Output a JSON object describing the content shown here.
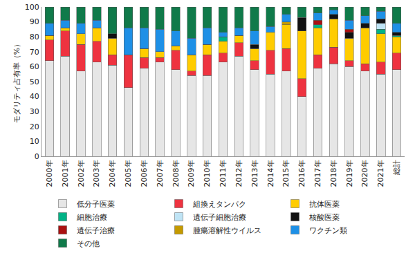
{
  "chart_data": {
    "type": "bar",
    "stacked": true,
    "y_label": "モダリティ占有率（%）",
    "categories": [
      "2000年",
      "2001年",
      "2002年",
      "2003年",
      "2004年",
      "2005年",
      "2006年",
      "2007年",
      "2008年",
      "2009年",
      "2010年",
      "2011年",
      "2012年",
      "2013年",
      "2014年",
      "2015年",
      "2016年",
      "2017年",
      "2018年",
      "2019年",
      "2020年",
      "2021年",
      "総計"
    ],
    "ylim": [
      0,
      100
    ],
    "yticks": [
      0,
      10,
      20,
      30,
      40,
      50,
      60,
      70,
      80,
      90,
      100
    ],
    "grid": false,
    "legend": "bottom",
    "series": [
      {
        "name": "低分子医薬",
        "color": "#e6e6e6",
        "values": [
          64,
          67,
          57,
          63,
          61,
          46,
          59,
          63,
          58,
          54,
          54,
          63,
          67,
          58,
          55,
          57,
          40,
          59,
          62,
          60,
          57,
          55,
          58
        ]
      },
      {
        "name": "組換えタンパク",
        "color": "#ee3340",
        "values": [
          14,
          17,
          18,
          14,
          7,
          22,
          7,
          3,
          13,
          3,
          14,
          6,
          9,
          6,
          16,
          15,
          12,
          9,
          11,
          4,
          5,
          8,
          11
        ]
      },
      {
        "name": "抗体医薬",
        "color": "#ffcc00",
        "values": [
          3,
          2,
          7,
          9,
          11,
          0,
          6,
          4,
          3,
          11,
          7,
          8,
          5,
          8,
          12,
          16,
          32,
          18,
          19,
          15,
          24,
          19,
          11
        ]
      },
      {
        "name": "細胞治療",
        "color": "#00b386",
        "values": [
          0,
          0,
          0,
          0,
          0,
          0,
          0,
          0,
          0,
          0,
          0,
          3,
          0,
          0,
          0,
          0,
          0,
          2,
          0,
          0,
          0,
          3,
          1
        ]
      },
      {
        "name": "遺伝子細胞治療",
        "color": "#bfe4f5",
        "values": [
          0,
          0,
          0,
          0,
          0,
          0,
          0,
          0,
          0,
          0,
          0,
          0,
          0,
          0,
          0,
          0,
          0,
          0,
          0,
          0,
          0,
          4,
          0
        ]
      },
      {
        "name": "核酸医薬",
        "color": "#111111",
        "values": [
          0,
          0,
          0,
          0,
          3,
          0,
          0,
          0,
          0,
          0,
          0,
          0,
          0,
          3,
          0,
          0,
          9,
          0,
          3,
          4,
          3,
          3,
          2
        ]
      },
      {
        "name": "遺伝子治療",
        "color": "#aa1111",
        "values": [
          0,
          0,
          0,
          0,
          0,
          0,
          0,
          0,
          0,
          0,
          0,
          0,
          0,
          0,
          0,
          0,
          0,
          3,
          0,
          2,
          0,
          0,
          0
        ]
      },
      {
        "name": "腫瘍溶解性ウイルス",
        "color": "#c49a00",
        "values": [
          0,
          0,
          0,
          0,
          0,
          0,
          0,
          0,
          0,
          0,
          0,
          0,
          0,
          0,
          0,
          2,
          0,
          0,
          0,
          0,
          0,
          0,
          0
        ]
      },
      {
        "name": "ワクチン類",
        "color": "#1e90e6",
        "values": [
          8,
          5,
          7,
          5,
          0,
          18,
          14,
          15,
          10,
          11,
          11,
          3,
          5,
          9,
          4,
          5,
          0,
          5,
          3,
          6,
          5,
          5,
          6
        ]
      },
      {
        "name": "その他",
        "color": "#107a4a",
        "values": [
          11,
          9,
          11,
          9,
          18,
          14,
          14,
          15,
          16,
          21,
          14,
          17,
          14,
          16,
          13,
          5,
          7,
          4,
          2,
          9,
          6,
          3,
          11
        ]
      }
    ]
  }
}
